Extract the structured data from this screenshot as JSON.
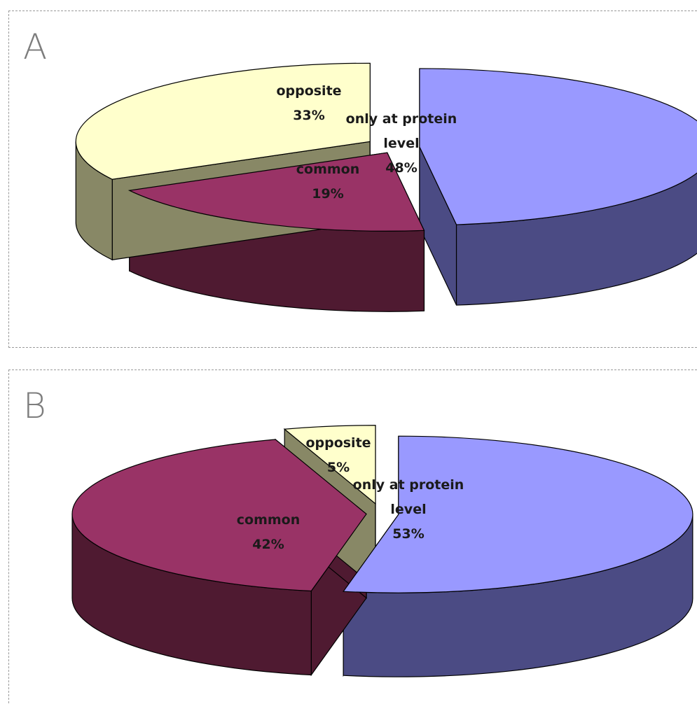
{
  "chart_data": [
    {
      "type": "pie",
      "panel": "A",
      "slices": [
        {
          "name_lines": [
            "only at protein",
            "level"
          ],
          "percent_label": "48%",
          "value": 48,
          "top_color": "#9999ff",
          "side_color": "#4b4b84"
        },
        {
          "name_lines": [
            "common"
          ],
          "percent_label": "19%",
          "value": 19,
          "top_color": "#993366",
          "side_color": "#4f1a31"
        },
        {
          "name_lines": [
            "opposite"
          ],
          "percent_label": "33%",
          "value": 33,
          "top_color": "#ffffcc",
          "side_color": "#888866"
        }
      ]
    },
    {
      "type": "pie",
      "panel": "B",
      "slices": [
        {
          "name_lines": [
            "only at protein",
            "level"
          ],
          "percent_label": "53%",
          "value": 53,
          "top_color": "#9999ff",
          "side_color": "#4b4b84"
        },
        {
          "name_lines": [
            "common"
          ],
          "percent_label": "42%",
          "value": 42,
          "top_color": "#993366",
          "side_color": "#4f1a31"
        },
        {
          "name_lines": [
            "opposite"
          ],
          "percent_label": "5%",
          "value": 5,
          "top_color": "#ffffcc",
          "side_color": "#888866"
        }
      ]
    }
  ]
}
